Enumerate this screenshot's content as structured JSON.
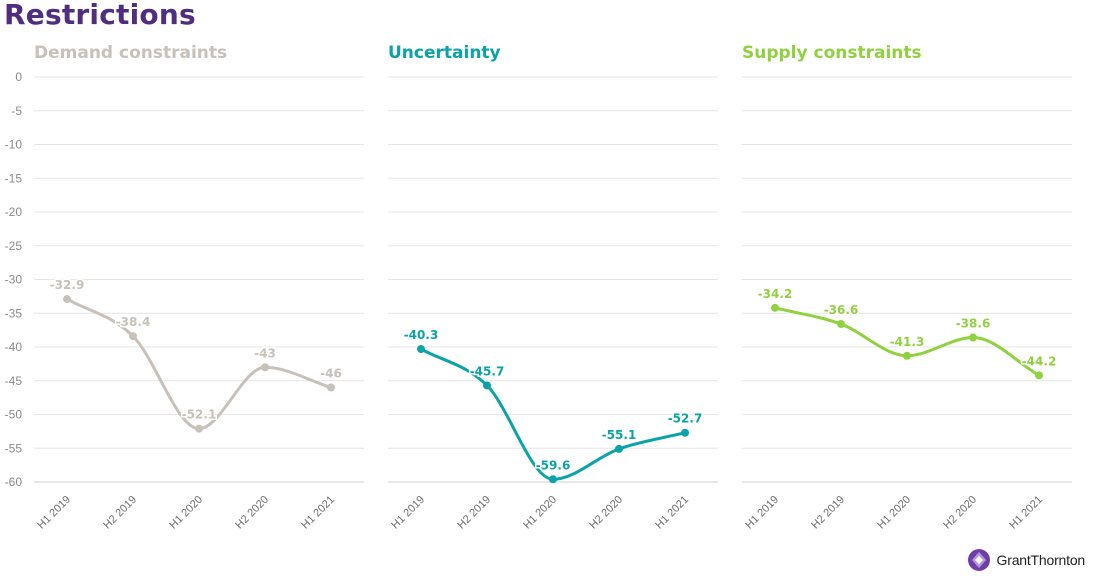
{
  "title": "Restrictions",
  "brand": {
    "name": "GrantThornton",
    "color": "#4f2d7f"
  },
  "chart_data": [
    {
      "type": "line",
      "title": "Demand constraints",
      "color": "#c7c1ba",
      "categories": [
        "H1 2019",
        "H2 2019",
        "H1 2020",
        "H2 2020",
        "H1 2021"
      ],
      "values": [
        -32.9,
        -38.4,
        -52.1,
        -43,
        -46
      ],
      "labels": [
        "-32.9",
        "-38.4",
        "-52.1",
        "-43",
        "-46"
      ],
      "ylim": [
        -60,
        0
      ],
      "yticks": [
        0,
        -5,
        -10,
        -15,
        -20,
        -25,
        -30,
        -35,
        -40,
        -45,
        -50,
        -55,
        -60
      ],
      "grid": true
    },
    {
      "type": "line",
      "title": "Uncertainty",
      "color": "#0aa3a8",
      "categories": [
        "H1 2019",
        "H2 2019",
        "H1 2020",
        "H2 2020",
        "H1 2021"
      ],
      "values": [
        -40.3,
        -45.7,
        -59.6,
        -55.1,
        -52.7
      ],
      "labels": [
        "-40.3",
        "-45.7",
        "-59.6",
        "-55.1",
        "-52.7"
      ],
      "ylim": [
        -60,
        0
      ],
      "grid": true
    },
    {
      "type": "line",
      "title": "Supply constraints",
      "color": "#8fd13f",
      "categories": [
        "H1 2019",
        "H2 2019",
        "H1 2020",
        "H2 2020",
        "H1 2021"
      ],
      "values": [
        -34.2,
        -36.6,
        -41.3,
        -38.6,
        -44.2
      ],
      "labels": [
        "-34.2",
        "-36.6",
        "-41.3",
        "-38.6",
        "-44.2"
      ],
      "ylim": [
        -60,
        0
      ],
      "grid": true
    }
  ]
}
